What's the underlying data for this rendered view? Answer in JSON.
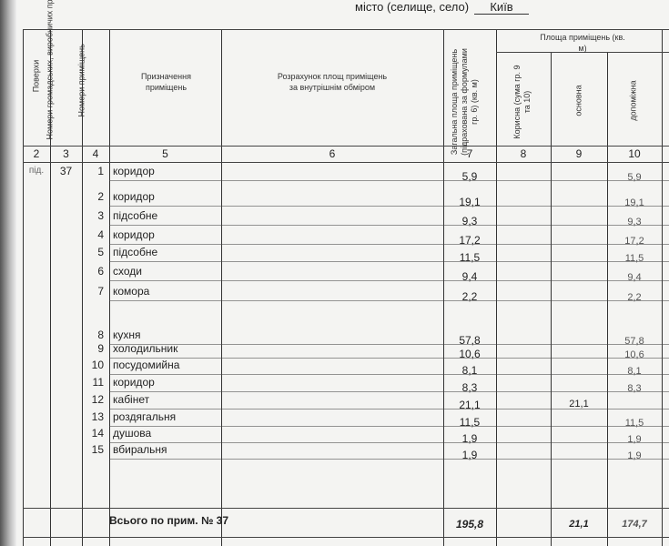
{
  "header": {
    "city_label": "місто (селище, село)",
    "city_value": "Київ"
  },
  "columns": {
    "floor": "Поверхи",
    "premises_nums": "Номери громадських, виробничих приміщень",
    "room_nums": "Номери приміщень",
    "purpose": "Призначення приміщень",
    "calc": "Розрахунок площ приміщень за внутрішнім обміром",
    "total": "Загальна площа приміщень (підрахована за формулами гр. 6) (кв. м)",
    "area_group": "Площа приміщень (кв. м)",
    "useful": "Корисна (сума гр. 9 та 10)",
    "main": "основна",
    "aux": "допоміжна"
  },
  "column_numbers": [
    "2",
    "3",
    "4",
    "5",
    "6",
    "7",
    "8",
    "9",
    "10"
  ],
  "floor": "під.",
  "premises_no": "37",
  "rows": [
    {
      "no": "1",
      "purpose": "коридор",
      "total": "5,9",
      "main": "",
      "aux": "5,9"
    },
    {
      "no": "2",
      "purpose": "коридор",
      "total": "19,1",
      "main": "",
      "aux": "19,1"
    },
    {
      "no": "3",
      "purpose": "підсобне",
      "total": "9,3",
      "main": "",
      "aux": "9,3"
    },
    {
      "no": "4",
      "purpose": "коридор",
      "total": "17,2",
      "main": "",
      "aux": "17,2"
    },
    {
      "no": "5",
      "purpose": "підсобне",
      "total": "11,5",
      "main": "",
      "aux": "11,5"
    },
    {
      "no": "6",
      "purpose": "сходи",
      "total": "9,4",
      "main": "",
      "aux": "9,4"
    },
    {
      "no": "7",
      "purpose": "комора",
      "total": "2,2",
      "main": "",
      "aux": "2,2"
    },
    {
      "no": "8",
      "purpose": "кухня",
      "total": "57,8",
      "main": "",
      "aux": "57,8"
    },
    {
      "no": "9",
      "purpose": "холодильник",
      "total": "10,6",
      "main": "",
      "aux": "10,6"
    },
    {
      "no": "10",
      "purpose": "посудомийна",
      "total": "8,1",
      "main": "",
      "aux": "8,1"
    },
    {
      "no": "11",
      "purpose": "коридор",
      "total": "8,3",
      "main": "",
      "aux": "8,3"
    },
    {
      "no": "12",
      "purpose": "кабінет",
      "total": "21,1",
      "main": "21,1",
      "aux": ""
    },
    {
      "no": "13",
      "purpose": "роздягальня",
      "total": "11,5",
      "main": "",
      "aux": "11,5"
    },
    {
      "no": "14",
      "purpose": "душова",
      "total": "1,9",
      "main": "",
      "aux": "1,9"
    },
    {
      "no": "15",
      "purpose": "вбиральня",
      "total": "1,9",
      "main": "",
      "aux": "1,9"
    }
  ],
  "summary": {
    "label": "Всього по прим. № 37",
    "total": "195,8",
    "main": "21,1",
    "aux": "174,7"
  }
}
